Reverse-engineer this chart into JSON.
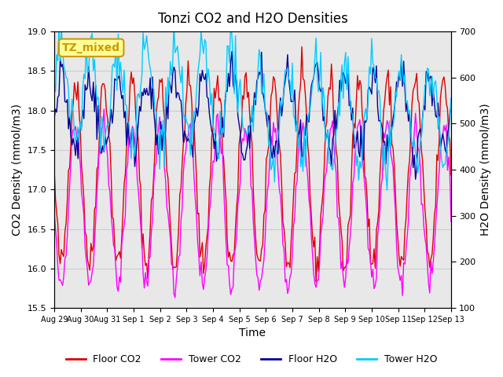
{
  "title": "Tonzi CO2 and H2O Densities",
  "xlabel": "Time",
  "ylabel_left": "CO2 Density (mmol/m3)",
  "ylabel_right": "H2O Density (mmol/m3)",
  "ylim_left": [
    15.5,
    19.0
  ],
  "ylim_right": [
    100,
    700
  ],
  "yticks_left": [
    15.5,
    16.0,
    16.5,
    17.0,
    17.5,
    18.0,
    18.5,
    19.0
  ],
  "yticks_right": [
    100,
    200,
    300,
    400,
    500,
    600,
    700
  ],
  "xtick_labels": [
    "Aug 29",
    "Aug 30",
    "Aug 31",
    "Sep 1",
    "Sep 2",
    "Sep 3",
    "Sep 4",
    "Sep 5",
    "Sep 6",
    "Sep 7",
    "Sep 8",
    "Sep 9",
    "Sep 10",
    "Sep 11",
    "Sep 12",
    "Sep 13"
  ],
  "legend_entries": [
    "Floor CO2",
    "Tower CO2",
    "Floor H2O",
    "Tower H2O"
  ],
  "line_colors": [
    "#dd0000",
    "#ff00ff",
    "#000099",
    "#00ccff"
  ],
  "annotation_text": "TZ_mixed",
  "annotation_color": "#cc9900",
  "annotation_bg": "#ffff99",
  "grid_color": "#cccccc",
  "bg_color": "#e8e8e8",
  "n_points": 336,
  "seed": 42
}
